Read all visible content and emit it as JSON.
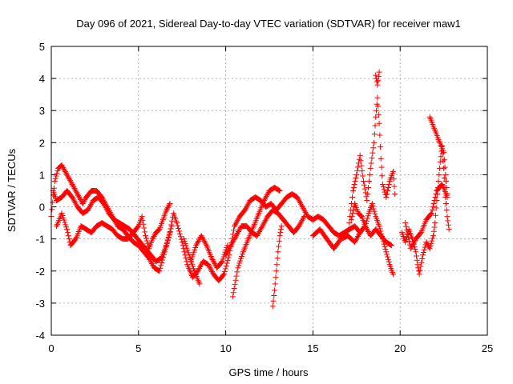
{
  "chart_data": {
    "type": "scatter",
    "title": "Day 096 of 2021, Sidereal Day-to-day VTEC variation (SDTVAR) for receiver maw1",
    "xlabel": "GPS time / hours",
    "ylabel": "SDTVAR / TECUs",
    "xlim": [
      0,
      25
    ],
    "ylim": [
      -4,
      5
    ],
    "xticks": [
      "0",
      "5",
      "10",
      "15",
      "20",
      "25"
    ],
    "yticks": [
      "-4",
      "-3",
      "-2",
      "-1",
      "0",
      "1",
      "2",
      "3",
      "4",
      "5"
    ],
    "grid": true,
    "marker": "+",
    "color": "#ff0000",
    "series": [
      {
        "name": "SDTVAR",
        "path": [
          [
            0.0,
            -0.3
          ],
          [
            0.2,
            0.8
          ],
          [
            0.4,
            1.2
          ],
          [
            0.6,
            1.3
          ],
          [
            0.8,
            1.1
          ],
          [
            1.0,
            0.9
          ],
          [
            1.2,
            0.7
          ],
          [
            1.5,
            0.4
          ],
          [
            1.8,
            0.1
          ],
          [
            2.0,
            0.3
          ],
          [
            2.3,
            0.5
          ],
          [
            2.6,
            0.5
          ],
          [
            2.9,
            0.3
          ],
          [
            3.2,
            0.0
          ],
          [
            3.5,
            -0.3
          ],
          [
            3.8,
            -0.6
          ],
          [
            4.1,
            -0.7
          ],
          [
            4.4,
            -0.9
          ],
          [
            4.7,
            -1.1
          ],
          [
            5.0,
            -1.2
          ],
          [
            5.3,
            -1.4
          ],
          [
            5.6,
            -1.6
          ],
          [
            5.9,
            -1.9
          ],
          [
            6.2,
            -2.0
          ],
          [
            6.5,
            -1.4
          ],
          [
            6.8,
            -0.8
          ],
          [
            7.0,
            -0.2
          ],
          [
            7.2,
            -0.5
          ],
          [
            7.5,
            -1.1
          ],
          [
            7.8,
            -1.8
          ],
          [
            8.1,
            -2.2
          ],
          [
            8.4,
            -2.0
          ],
          [
            8.7,
            -1.7
          ],
          [
            9.0,
            -1.8
          ],
          [
            9.3,
            -2.1
          ],
          [
            9.6,
            -2.3
          ],
          [
            9.9,
            -2.1
          ],
          [
            10.2,
            -1.5
          ],
          [
            10.5,
            -0.6
          ],
          [
            10.8,
            -0.3
          ],
          [
            11.1,
            -0.1
          ],
          [
            11.4,
            0.2
          ],
          [
            11.7,
            0.3
          ],
          [
            12.0,
            0.2
          ],
          [
            12.3,
            0.0
          ],
          [
            12.6,
            0.1
          ],
          [
            12.9,
            -0.1
          ],
          [
            13.2,
            0.1
          ],
          [
            13.5,
            0.3
          ],
          [
            13.8,
            0.4
          ],
          [
            14.1,
            0.3
          ],
          [
            14.4,
            0.0
          ],
          [
            14.7,
            -0.3
          ],
          [
            15.0,
            -0.4
          ],
          [
            15.3,
            -0.3
          ],
          [
            15.6,
            -0.4
          ],
          [
            15.9,
            -0.6
          ],
          [
            16.2,
            -0.8
          ],
          [
            16.5,
            -0.9
          ],
          [
            16.8,
            -0.8
          ],
          [
            17.1,
            -0.7
          ],
          [
            17.4,
            -0.6
          ],
          [
            17.7,
            -0.8
          ],
          [
            18.0,
            -0.6
          ],
          [
            18.3,
            -0.9
          ],
          [
            18.6,
            -0.7
          ],
          [
            18.9,
            -0.9
          ],
          [
            19.2,
            -1.1
          ],
          [
            19.5,
            -1.2
          ]
        ]
      },
      {
        "name": "SDTVAR",
        "path": [
          [
            0.3,
            -0.6
          ],
          [
            0.6,
            -0.2
          ],
          [
            0.9,
            -0.7
          ],
          [
            1.1,
            -1.2
          ],
          [
            1.4,
            -1.0
          ],
          [
            1.7,
            -0.6
          ],
          [
            2.0,
            -0.7
          ],
          [
            2.3,
            -0.8
          ],
          [
            2.6,
            -0.6
          ],
          [
            2.9,
            -0.5
          ],
          [
            3.2,
            -0.6
          ],
          [
            3.5,
            -0.7
          ],
          [
            3.8,
            -0.9
          ],
          [
            4.1,
            -1.0
          ],
          [
            4.4,
            -1.0
          ],
          [
            4.7,
            -0.8
          ],
          [
            5.0,
            -0.6
          ],
          [
            5.2,
            -0.3
          ],
          [
            5.4,
            -0.9
          ],
          [
            5.6,
            -1.3
          ],
          [
            5.8,
            -1.0
          ],
          [
            6.0,
            -0.8
          ],
          [
            6.2,
            -0.7
          ],
          [
            6.4,
            -0.4
          ],
          [
            6.6,
            -0.1
          ],
          [
            6.8,
            0.1
          ]
        ]
      },
      {
        "name": "SDTVAR",
        "path": [
          [
            0.1,
            0.5
          ],
          [
            0.3,
            0.2
          ],
          [
            0.6,
            0.3
          ],
          [
            0.9,
            0.5
          ],
          [
            1.2,
            0.3
          ],
          [
            1.5,
            0.0
          ],
          [
            1.8,
            -0.2
          ],
          [
            2.1,
            -0.1
          ],
          [
            2.4,
            0.2
          ],
          [
            2.7,
            0.3
          ],
          [
            3.0,
            0.1
          ],
          [
            3.3,
            -0.2
          ],
          [
            3.6,
            -0.4
          ],
          [
            3.9,
            -0.5
          ],
          [
            4.2,
            -0.6
          ],
          [
            4.5,
            -0.7
          ],
          [
            4.8,
            -0.9
          ],
          [
            5.1,
            -1.1
          ],
          [
            5.4,
            -1.3
          ],
          [
            5.7,
            -1.5
          ],
          [
            6.0,
            -1.7
          ],
          [
            6.3,
            -1.6
          ],
          [
            6.6,
            -1.2
          ],
          [
            6.9,
            -0.6
          ]
        ]
      },
      {
        "name": "SDTVAR",
        "path": [
          [
            10.4,
            -2.8
          ],
          [
            10.7,
            -1.9
          ],
          [
            11.0,
            -1.4
          ],
          [
            11.3,
            -1.0
          ],
          [
            11.6,
            -0.6
          ],
          [
            11.9,
            -0.2
          ],
          [
            12.2,
            0.2
          ],
          [
            12.5,
            0.5
          ],
          [
            12.8,
            0.6
          ],
          [
            13.1,
            0.5
          ]
        ]
      },
      {
        "name": "SDTVAR",
        "path": [
          [
            10.0,
            -1.5
          ],
          [
            10.3,
            -1.2
          ],
          [
            10.6,
            -0.9
          ],
          [
            10.9,
            -0.6
          ],
          [
            11.2,
            -0.6
          ],
          [
            11.5,
            -0.8
          ],
          [
            11.8,
            -0.9
          ],
          [
            12.1,
            -0.6
          ],
          [
            12.4,
            -0.3
          ],
          [
            12.7,
            -0.1
          ],
          [
            13.0,
            -0.2
          ],
          [
            13.3,
            -0.4
          ],
          [
            13.6,
            -0.6
          ],
          [
            13.9,
            -0.8
          ],
          [
            14.2,
            -0.6
          ],
          [
            14.5,
            -0.3
          ]
        ]
      },
      {
        "name": "SDTVAR",
        "path": [
          [
            8.0,
            -1.7
          ],
          [
            8.3,
            -1.2
          ],
          [
            8.6,
            -0.9
          ],
          [
            8.9,
            -1.2
          ],
          [
            9.2,
            -1.6
          ],
          [
            9.5,
            -1.9
          ],
          [
            9.8,
            -1.7
          ],
          [
            10.1,
            -1.2
          ]
        ]
      },
      {
        "name": "SDTVAR",
        "path": [
          [
            12.7,
            -3.1
          ],
          [
            12.8,
            -2.6
          ],
          [
            12.9,
            -2.0
          ],
          [
            13.0,
            -1.4
          ],
          [
            13.1,
            -0.9
          ],
          [
            13.2,
            -0.6
          ]
        ]
      },
      {
        "name": "SDTVAR",
        "path": [
          [
            7.6,
            -1.0
          ],
          [
            7.9,
            -1.5
          ],
          [
            8.2,
            -2.0
          ],
          [
            8.5,
            -2.4
          ]
        ]
      },
      {
        "name": "SDTVAR",
        "path": [
          [
            17.0,
            -0.9
          ],
          [
            17.3,
            0.5
          ],
          [
            17.5,
            1.0
          ],
          [
            17.7,
            1.6
          ],
          [
            17.9,
            0.8
          ],
          [
            18.1,
            0.2
          ],
          [
            18.3,
            1.2
          ],
          [
            18.5,
            2.0
          ],
          [
            18.6,
            2.8
          ],
          [
            18.7,
            3.4
          ],
          [
            18.8,
            2.6
          ],
          [
            18.9,
            1.5
          ],
          [
            19.0,
            0.7
          ],
          [
            19.2,
            0.3
          ],
          [
            19.4,
            0.8
          ],
          [
            19.6,
            1.1
          ],
          [
            19.7,
            0.4
          ]
        ]
      },
      {
        "name": "SDTVAR",
        "path": [
          [
            17.2,
            -0.4
          ],
          [
            17.4,
            0.1
          ],
          [
            17.6,
            -0.2
          ],
          [
            17.8,
            -0.3
          ],
          [
            18.0,
            -0.6
          ],
          [
            18.2,
            -0.2
          ],
          [
            18.4,
            0.1
          ],
          [
            18.6,
            -0.3
          ],
          [
            18.8,
            -0.6
          ],
          [
            19.0,
            -1.0
          ],
          [
            19.2,
            -1.4
          ],
          [
            19.4,
            -1.8
          ],
          [
            19.6,
            -2.1
          ]
        ]
      },
      {
        "name": "SDTVAR",
        "path": [
          [
            18.8,
            4.2
          ],
          [
            18.7,
            3.8
          ],
          [
            18.6,
            4.1
          ]
        ]
      },
      {
        "name": "SDTVAR",
        "path": [
          [
            20.1,
            -0.8
          ],
          [
            20.3,
            -1.1
          ],
          [
            20.5,
            -0.7
          ],
          [
            20.7,
            -1.0
          ],
          [
            20.9,
            -1.4
          ],
          [
            21.0,
            -1.8
          ],
          [
            21.1,
            -2.1
          ],
          [
            21.3,
            -1.5
          ],
          [
            21.5,
            -1.1
          ],
          [
            21.7,
            -1.3
          ],
          [
            21.9,
            -0.9
          ],
          [
            22.0,
            -0.5
          ],
          [
            22.1,
            0.2
          ],
          [
            22.2,
            0.8
          ],
          [
            22.3,
            1.4
          ],
          [
            22.4,
            1.9
          ],
          [
            22.5,
            1.2
          ],
          [
            22.6,
            0.3
          ],
          [
            22.7,
            -0.3
          ],
          [
            22.8,
            -0.7
          ]
        ]
      },
      {
        "name": "SDTVAR",
        "path": [
          [
            21.7,
            2.8
          ],
          [
            22.2,
            2.1
          ],
          [
            22.5,
            1.7
          ],
          [
            22.6,
            1.0
          ],
          [
            22.7,
            0.4
          ]
        ]
      },
      {
        "name": "SDTVAR",
        "path": [
          [
            20.3,
            -0.5
          ],
          [
            20.6,
            -1.3
          ],
          [
            20.9,
            -1.0
          ],
          [
            21.2,
            -0.8
          ],
          [
            21.5,
            -0.4
          ],
          [
            21.8,
            -0.2
          ],
          [
            22.1,
            0.5
          ],
          [
            22.4,
            0.7
          ],
          [
            22.7,
            0.3
          ]
        ]
      },
      {
        "name": "SDTVAR",
        "path": [
          [
            15.0,
            -0.9
          ],
          [
            15.4,
            -0.7
          ],
          [
            15.8,
            -1.0
          ],
          [
            16.2,
            -1.3
          ],
          [
            16.6,
            -1.0
          ],
          [
            17.0,
            -0.9
          ],
          [
            17.4,
            -1.1
          ],
          [
            17.8,
            -0.7
          ]
        ]
      }
    ]
  }
}
